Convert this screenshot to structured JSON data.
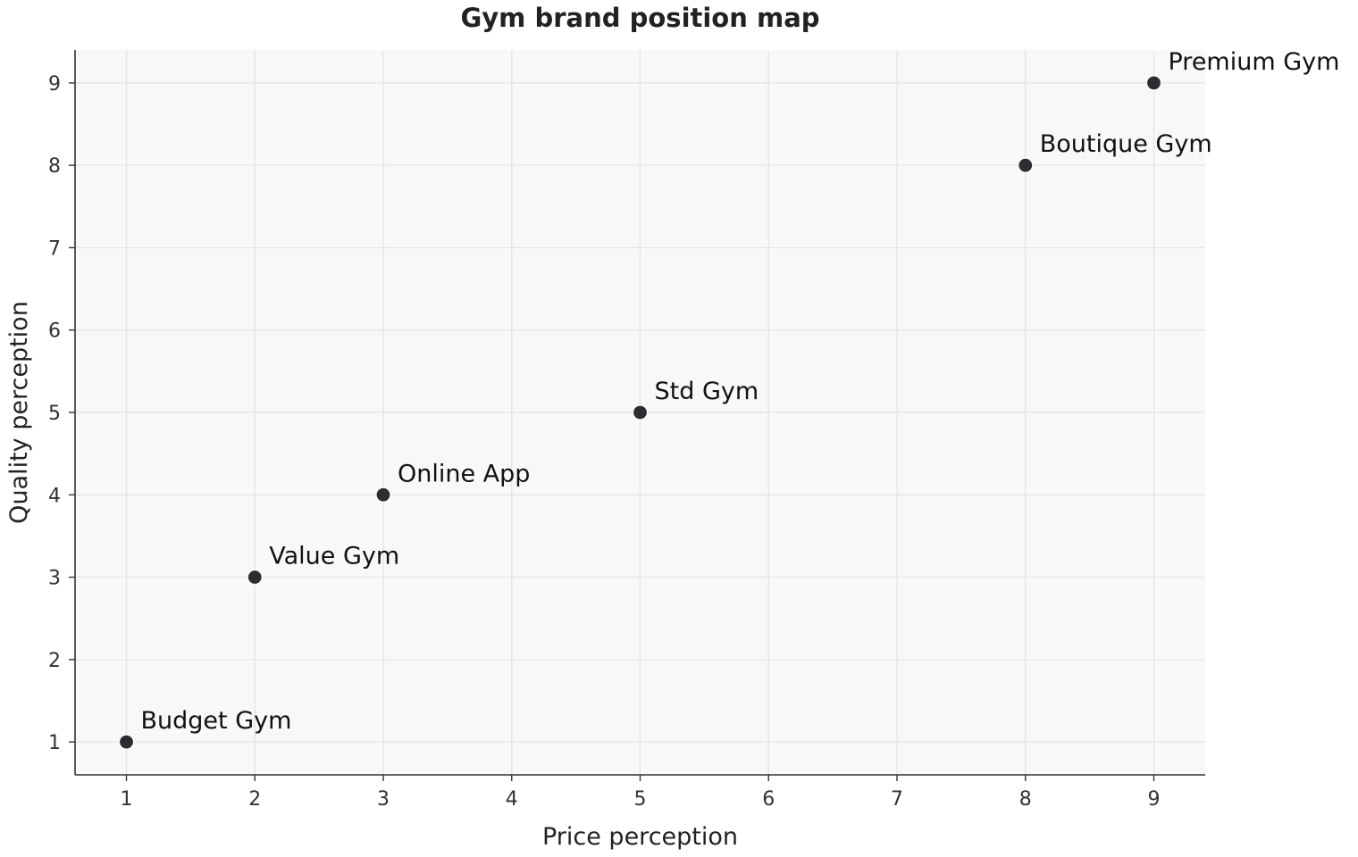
{
  "chart_data": {
    "type": "scatter",
    "title": "Gym brand position map",
    "xlabel": "Price perception",
    "ylabel": "Quality perception",
    "xlim": [
      0.6,
      9.4
    ],
    "ylim": [
      0.6,
      9.4
    ],
    "xticks": [
      1,
      2,
      3,
      4,
      5,
      6,
      7,
      8,
      9
    ],
    "yticks": [
      1,
      2,
      3,
      4,
      5,
      6,
      7,
      8,
      9
    ],
    "grid": true,
    "legend": "none",
    "marker_color": "#2b2d30",
    "background_color": "#f8f8f8",
    "points": [
      {
        "label": "Budget Gym",
        "x": 1,
        "y": 1
      },
      {
        "label": "Value Gym",
        "x": 2,
        "y": 3
      },
      {
        "label": "Online App",
        "x": 3,
        "y": 4
      },
      {
        "label": "Std Gym",
        "x": 5,
        "y": 5
      },
      {
        "label": "Boutique Gym",
        "x": 8,
        "y": 8
      },
      {
        "label": "Premium Gym",
        "x": 9,
        "y": 9
      }
    ]
  }
}
